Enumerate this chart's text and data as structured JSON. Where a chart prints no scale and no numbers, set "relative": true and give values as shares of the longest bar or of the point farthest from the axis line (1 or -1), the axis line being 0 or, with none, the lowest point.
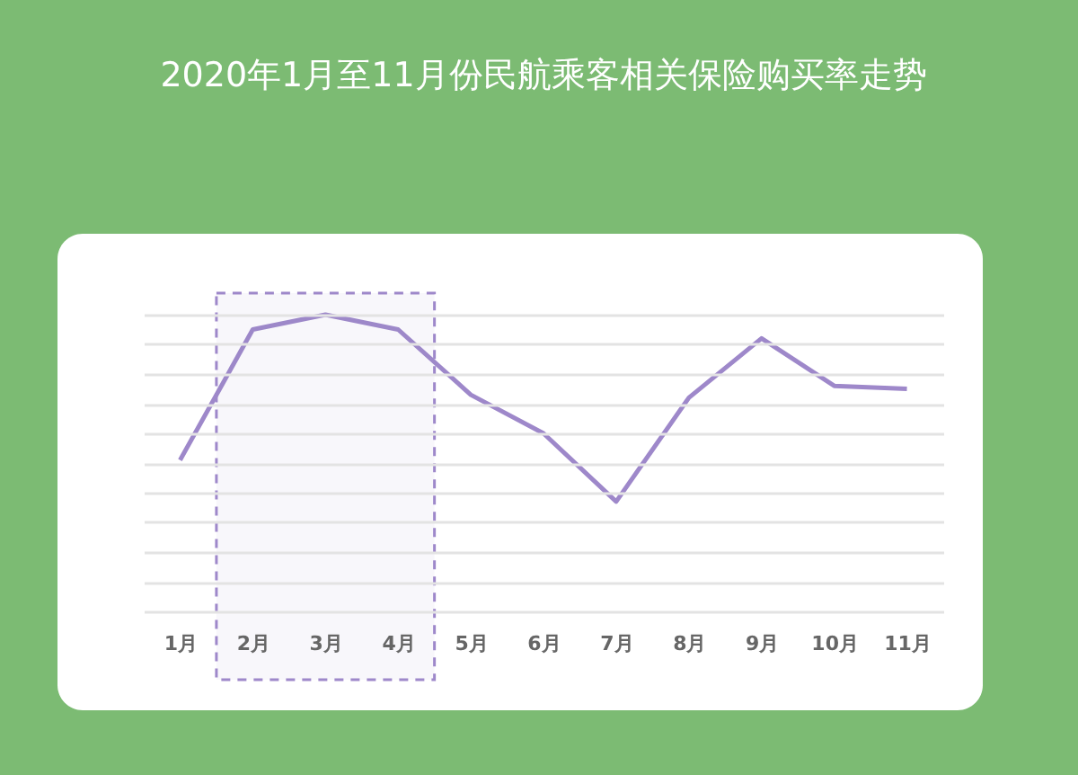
{
  "chart_data": {
    "type": "line",
    "title": "2020年1月至11月份民航乘客相关保险购买率走势",
    "relative": true,
    "grid": "y",
    "marker": "none",
    "line_style": "solid",
    "categories": [
      "1月",
      "2月",
      "3月",
      "4月",
      "5月",
      "6月",
      "7月",
      "8月",
      "9月",
      "10月",
      "11月"
    ],
    "series": [
      {
        "color": "#9e88ca",
        "values": [
          0.51,
          0.95,
          1,
          0.95,
          0.73,
          0.6,
          0.37,
          0.72,
          0.92,
          0.76,
          0.75
        ]
      }
    ],
    "bands": [
      {
        "axis": "x",
        "from": "2月",
        "to": "4月",
        "color": "#9e88ca"
      }
    ]
  }
}
